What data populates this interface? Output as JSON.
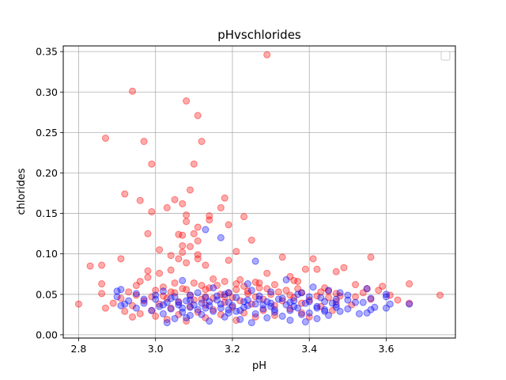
{
  "chart_data": {
    "type": "scatter",
    "title": "pHvschlorides",
    "xlabel": "pH",
    "ylabel": "chlorides",
    "xlim": [
      2.76,
      3.78
    ],
    "ylim": [
      -0.004,
      0.357
    ],
    "xticks": [
      2.8,
      3.0,
      3.2,
      3.4,
      3.6
    ],
    "xtick_labels": [
      "2.8",
      "3.0",
      "3.2",
      "3.4",
      "3.6"
    ],
    "yticks": [
      0.0,
      0.05,
      0.1,
      0.15,
      0.2,
      0.25,
      0.3,
      0.35
    ],
    "ytick_labels": [
      "0.00",
      "0.05",
      "0.10",
      "0.15",
      "0.20",
      "0.25",
      "0.30",
      "0.35"
    ],
    "grid": true,
    "legend": "top-right, empty",
    "series": [
      {
        "color": "#ff0000",
        "points": [
          [
            3.29,
            0.346
          ],
          [
            2.94,
            0.301
          ],
          [
            3.08,
            0.289
          ],
          [
            3.11,
            0.271
          ],
          [
            2.87,
            0.243
          ],
          [
            2.97,
            0.239
          ],
          [
            3.12,
            0.239
          ],
          [
            2.99,
            0.211
          ],
          [
            3.1,
            0.211
          ],
          [
            2.92,
            0.174
          ],
          [
            3.09,
            0.179
          ],
          [
            3.07,
            0.162
          ],
          [
            2.96,
            0.166
          ],
          [
            3.18,
            0.169
          ],
          [
            3.05,
            0.167
          ],
          [
            3.03,
            0.157
          ],
          [
            2.99,
            0.152
          ],
          [
            3.17,
            0.157
          ],
          [
            3.08,
            0.148
          ],
          [
            3.14,
            0.147
          ],
          [
            3.23,
            0.146
          ],
          [
            3.19,
            0.136
          ],
          [
            3.08,
            0.14
          ],
          [
            3.14,
            0.142
          ],
          [
            3.11,
            0.133
          ],
          [
            3.1,
            0.125
          ],
          [
            2.98,
            0.125
          ],
          [
            3.06,
            0.124
          ],
          [
            3.07,
            0.123
          ],
          [
            3.25,
            0.117
          ],
          [
            3.11,
            0.116
          ],
          [
            3.09,
            0.109
          ],
          [
            3.07,
            0.11
          ],
          [
            3.01,
            0.105
          ],
          [
            3.21,
            0.103
          ],
          [
            3.11,
            0.099
          ],
          [
            3.07,
            0.102
          ],
          [
            3.04,
            0.098
          ],
          [
            3.06,
            0.094
          ],
          [
            3.33,
            0.096
          ],
          [
            3.56,
            0.096
          ],
          [
            3.41,
            0.094
          ],
          [
            3.11,
            0.094
          ],
          [
            2.91,
            0.094
          ],
          [
            3.19,
            0.092
          ],
          [
            3.08,
            0.089
          ],
          [
            3.13,
            0.086
          ],
          [
            3.49,
            0.083
          ],
          [
            3.39,
            0.081
          ],
          [
            3.42,
            0.081
          ],
          [
            3.04,
            0.08
          ],
          [
            2.98,
            0.079
          ],
          [
            2.83,
            0.085
          ],
          [
            2.86,
            0.086
          ],
          [
            3.01,
            0.076
          ],
          [
            3.47,
            0.078
          ],
          [
            3.29,
            0.076
          ],
          [
            3.35,
            0.072
          ],
          [
            2.98,
            0.071
          ],
          [
            3.15,
            0.069
          ],
          [
            2.96,
            0.066
          ],
          [
            2.95,
            0.061
          ],
          [
            3.22,
            0.068
          ],
          [
            3.36,
            0.067
          ],
          [
            3.05,
            0.064
          ],
          [
            3.18,
            0.066
          ],
          [
            2.86,
            0.063
          ],
          [
            3.66,
            0.063
          ],
          [
            3.37,
            0.066
          ],
          [
            3.52,
            0.062
          ],
          [
            3.59,
            0.06
          ],
          [
            3.31,
            0.062
          ],
          [
            3.02,
            0.059
          ],
          [
            3.12,
            0.061
          ],
          [
            3.26,
            0.065
          ],
          [
            3.44,
            0.058
          ],
          [
            3.55,
            0.057
          ],
          [
            3.27,
            0.058
          ],
          [
            3.07,
            0.057
          ],
          [
            3.21,
            0.056
          ],
          [
            3.14,
            0.058
          ],
          [
            3.34,
            0.055
          ],
          [
            3.0,
            0.055
          ],
          [
            3.45,
            0.054
          ],
          [
            2.93,
            0.053
          ],
          [
            3.38,
            0.052
          ],
          [
            3.24,
            0.054
          ],
          [
            2.86,
            0.051
          ],
          [
            3.05,
            0.052
          ],
          [
            3.17,
            0.05
          ],
          [
            3.3,
            0.05
          ],
          [
            3.47,
            0.051
          ],
          [
            3.61,
            0.049
          ],
          [
            3.74,
            0.049
          ],
          [
            3.09,
            0.049
          ],
          [
            3.42,
            0.048
          ],
          [
            3.13,
            0.047
          ],
          [
            2.99,
            0.047
          ],
          [
            3.26,
            0.047
          ],
          [
            3.2,
            0.046
          ],
          [
            3.36,
            0.046
          ],
          [
            3.52,
            0.047
          ],
          [
            2.91,
            0.045
          ],
          [
            3.03,
            0.045
          ],
          [
            3.15,
            0.045
          ],
          [
            3.56,
            0.044
          ],
          [
            3.28,
            0.044
          ],
          [
            3.4,
            0.043
          ],
          [
            3.1,
            0.043
          ],
          [
            3.63,
            0.043
          ],
          [
            2.97,
            0.042
          ],
          [
            3.22,
            0.042
          ],
          [
            3.33,
            0.042
          ],
          [
            3.47,
            0.041
          ],
          [
            3.06,
            0.041
          ],
          [
            3.18,
            0.04
          ],
          [
            3.66,
            0.039
          ],
          [
            2.8,
            0.038
          ],
          [
            2.89,
            0.039
          ],
          [
            3.38,
            0.039
          ],
          [
            3.01,
            0.038
          ],
          [
            3.25,
            0.038
          ],
          [
            3.13,
            0.037
          ],
          [
            3.51,
            0.037
          ],
          [
            3.31,
            0.036
          ],
          [
            2.94,
            0.036
          ],
          [
            3.09,
            0.035
          ],
          [
            3.43,
            0.035
          ],
          [
            3.2,
            0.034
          ],
          [
            2.87,
            0.033
          ],
          [
            3.04,
            0.033
          ],
          [
            3.35,
            0.032
          ],
          [
            3.15,
            0.031
          ],
          [
            2.99,
            0.03
          ],
          [
            3.28,
            0.03
          ],
          [
            3.46,
            0.03
          ],
          [
            2.92,
            0.029
          ],
          [
            3.11,
            0.028
          ],
          [
            3.23,
            0.027
          ],
          [
            3.38,
            0.027
          ],
          [
            2.96,
            0.026
          ],
          [
            3.06,
            0.025
          ],
          [
            3.17,
            0.025
          ],
          [
            3.31,
            0.024
          ],
          [
            3.0,
            0.023
          ],
          [
            3.26,
            0.022
          ],
          [
            2.94,
            0.022
          ],
          [
            3.13,
            0.021
          ],
          [
            3.4,
            0.022
          ],
          [
            3.03,
            0.019
          ],
          [
            3.21,
            0.018
          ],
          [
            3.08,
            0.017
          ],
          [
            3.18,
            0.047
          ],
          [
            3.12,
            0.044
          ],
          [
            3.24,
            0.051
          ],
          [
            3.32,
            0.053
          ],
          [
            3.08,
            0.056
          ],
          [
            3.16,
            0.061
          ],
          [
            3.29,
            0.057
          ],
          [
            3.35,
            0.049
          ],
          [
            3.02,
            0.048
          ],
          [
            3.45,
            0.046
          ],
          [
            3.19,
            0.052
          ],
          [
            3.27,
            0.064
          ],
          [
            3.04,
            0.053
          ],
          [
            3.13,
            0.056
          ],
          [
            3.21,
            0.063
          ],
          [
            3.37,
            0.057
          ],
          [
            3.1,
            0.064
          ],
          [
            2.95,
            0.049
          ],
          [
            3.54,
            0.052
          ],
          [
            3.48,
            0.048
          ],
          [
            3.58,
            0.055
          ],
          [
            3.43,
            0.053
          ],
          [
            3.23,
            0.06
          ]
        ]
      },
      {
        "color": "#0000ff",
        "points": [
          [
            3.13,
            0.13
          ],
          [
            3.17,
            0.12
          ],
          [
            3.26,
            0.091
          ],
          [
            3.07,
            0.067
          ],
          [
            3.34,
            0.068
          ],
          [
            2.91,
            0.056
          ],
          [
            3.24,
            0.063
          ],
          [
            3.41,
            0.059
          ],
          [
            3.55,
            0.057
          ],
          [
            3.6,
            0.05
          ],
          [
            3.15,
            0.058
          ],
          [
            3.02,
            0.054
          ],
          [
            3.3,
            0.053
          ],
          [
            3.45,
            0.055
          ],
          [
            2.95,
            0.051
          ],
          [
            3.19,
            0.052
          ],
          [
            3.37,
            0.05
          ],
          [
            3.09,
            0.049
          ],
          [
            3.5,
            0.049
          ],
          [
            3.27,
            0.048
          ],
          [
            2.9,
            0.047
          ],
          [
            3.05,
            0.047
          ],
          [
            3.4,
            0.047
          ],
          [
            3.21,
            0.046
          ],
          [
            3.13,
            0.046
          ],
          [
            3.33,
            0.045
          ],
          [
            3.56,
            0.045
          ],
          [
            3.0,
            0.044
          ],
          [
            3.47,
            0.044
          ],
          [
            3.24,
            0.043
          ],
          [
            3.16,
            0.043
          ],
          [
            2.93,
            0.042
          ],
          [
            3.36,
            0.042
          ],
          [
            3.08,
            0.042
          ],
          [
            3.44,
            0.041
          ],
          [
            3.29,
            0.041
          ],
          [
            3.19,
            0.04
          ],
          [
            3.03,
            0.04
          ],
          [
            3.52,
            0.04
          ],
          [
            2.97,
            0.039
          ],
          [
            3.39,
            0.039
          ],
          [
            3.12,
            0.039
          ],
          [
            3.26,
            0.038
          ],
          [
            3.61,
            0.038
          ],
          [
            3.06,
            0.037
          ],
          [
            3.34,
            0.037
          ],
          [
            3.47,
            0.037
          ],
          [
            3.2,
            0.036
          ],
          [
            2.91,
            0.036
          ],
          [
            3.14,
            0.036
          ],
          [
            3.42,
            0.035
          ],
          [
            3.01,
            0.035
          ],
          [
            3.3,
            0.035
          ],
          [
            3.57,
            0.034
          ],
          [
            3.09,
            0.034
          ],
          [
            3.23,
            0.034
          ],
          [
            3.37,
            0.033
          ],
          [
            2.95,
            0.033
          ],
          [
            3.17,
            0.033
          ],
          [
            3.5,
            0.032
          ],
          [
            3.04,
            0.032
          ],
          [
            3.28,
            0.032
          ],
          [
            3.44,
            0.031
          ],
          [
            3.11,
            0.031
          ],
          [
            3.66,
            0.038
          ],
          [
            3.22,
            0.03
          ],
          [
            3.35,
            0.03
          ],
          [
            2.99,
            0.03
          ],
          [
            3.15,
            0.029
          ],
          [
            3.48,
            0.029
          ],
          [
            3.07,
            0.028
          ],
          [
            3.31,
            0.028
          ],
          [
            3.4,
            0.027
          ],
          [
            3.19,
            0.027
          ],
          [
            3.55,
            0.027
          ],
          [
            3.02,
            0.026
          ],
          [
            3.26,
            0.026
          ],
          [
            3.12,
            0.025
          ],
          [
            3.38,
            0.025
          ],
          [
            3.45,
            0.024
          ],
          [
            3.09,
            0.024
          ],
          [
            3.33,
            0.023
          ],
          [
            3.18,
            0.022
          ],
          [
            3.29,
            0.021
          ],
          [
            3.05,
            0.02
          ],
          [
            3.42,
            0.02
          ],
          [
            3.22,
            0.019
          ],
          [
            3.35,
            0.018
          ],
          [
            3.14,
            0.017
          ],
          [
            3.25,
            0.015
          ],
          [
            3.03,
            0.015
          ],
          [
            3.39,
            0.016
          ],
          [
            3.08,
            0.021
          ],
          [
            3.53,
            0.026
          ],
          [
            3.6,
            0.033
          ],
          [
            3.46,
            0.039
          ],
          [
            3.32,
            0.044
          ],
          [
            3.18,
            0.05
          ],
          [
            3.04,
            0.045
          ],
          [
            2.92,
            0.038
          ],
          [
            3.11,
            0.052
          ],
          [
            3.25,
            0.055
          ],
          [
            3.38,
            0.052
          ],
          [
            3.48,
            0.052
          ],
          [
            3.0,
            0.049
          ],
          [
            3.14,
            0.041
          ],
          [
            3.28,
            0.037
          ],
          [
            3.42,
            0.033
          ],
          [
            3.56,
            0.031
          ],
          [
            3.21,
            0.029
          ],
          [
            3.07,
            0.033
          ],
          [
            2.97,
            0.044
          ],
          [
            3.35,
            0.04
          ],
          [
            3.5,
            0.043
          ],
          [
            3.16,
            0.048
          ],
          [
            3.23,
            0.041
          ],
          [
            3.31,
            0.031
          ],
          [
            3.1,
            0.037
          ],
          [
            3.43,
            0.046
          ],
          [
            3.27,
            0.044
          ],
          [
            3.06,
            0.04
          ],
          [
            3.36,
            0.035
          ],
          [
            3.19,
            0.031
          ],
          [
            3.02,
            0.037
          ],
          [
            3.47,
            0.034
          ],
          [
            3.13,
            0.033
          ],
          [
            3.3,
            0.039
          ],
          [
            3.24,
            0.036
          ],
          [
            3.4,
            0.041
          ],
          [
            3.17,
            0.038
          ],
          [
            3.09,
            0.043
          ],
          [
            2.9,
            0.054
          ],
          [
            3.54,
            0.04
          ],
          [
            3.44,
            0.029
          ],
          [
            3.6,
            0.047
          ]
        ]
      }
    ]
  }
}
